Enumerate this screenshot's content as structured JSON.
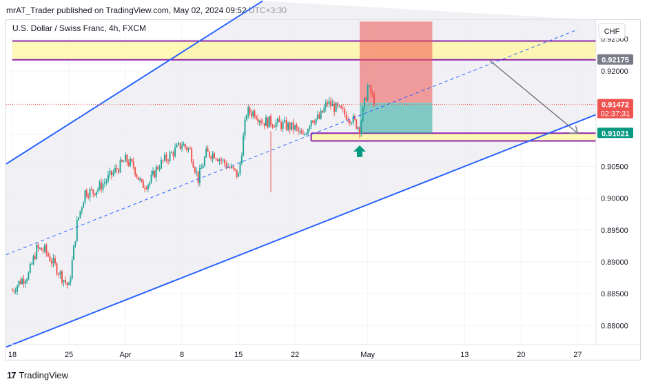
{
  "header": {
    "publisher": "mrAT_Trader published on TradingView.com, May 02, 2024 09:52 UTC+3:30"
  },
  "chart_header": {
    "symbol": "U.S. Dollar / Swiss Franc, 4h, FXCM"
  },
  "currency": "CHF",
  "footer": {
    "brand": "TradingView",
    "logo_mark": "17"
  },
  "colors": {
    "up": "#26a69a",
    "down": "#ef5350",
    "channel": "#2962ff",
    "zone_fill": "#fff59d",
    "zone_border": "#8e24aa",
    "target": "#26a69a",
    "stop": "#ef5350",
    "arrow": "#787b86"
  },
  "badges": {
    "resistance": "0.92175",
    "current_price": "0.91472",
    "countdown": "02:37:31",
    "support": "0.91021"
  },
  "chart_data": {
    "type": "candlestick",
    "title": "U.S. Dollar / Swiss Franc, 4h, FXCM",
    "instrument": "USDCHF",
    "timeframe": "4h",
    "yaxis": {
      "ticks": [
        "0.92500",
        "0.92000",
        "0.91500",
        "0.91000",
        "0.90500",
        "0.90000",
        "0.89500",
        "0.89000",
        "0.88500",
        "0.88000"
      ],
      "range": [
        0.877,
        0.928
      ]
    },
    "xaxis": {
      "ticks": [
        "18",
        "25",
        "Apr",
        "8",
        "15",
        "22",
        "May",
        "13",
        "20",
        "27"
      ]
    },
    "close_path": [
      {
        "d": "2024-03-18",
        "c": 0.8855
      },
      {
        "d": "2024-03-19",
        "c": 0.887
      },
      {
        "d": "2024-03-20",
        "c": 0.888
      },
      {
        "d": "2024-03-21",
        "c": 0.892
      },
      {
        "d": "2024-03-22",
        "c": 0.8918
      },
      {
        "d": "2024-03-25",
        "c": 0.886
      },
      {
        "d": "2024-03-26",
        "c": 0.896
      },
      {
        "d": "2024-03-27",
        "c": 0.901
      },
      {
        "d": "2024-03-28",
        "c": 0.901
      },
      {
        "d": "2024-03-29",
        "c": 0.902
      },
      {
        "d": "2024-04-01",
        "c": 0.906
      },
      {
        "d": "2024-04-02",
        "c": 0.905
      },
      {
        "d": "2024-04-03",
        "c": 0.902
      },
      {
        "d": "2024-04-04",
        "c": 0.9025
      },
      {
        "d": "2024-04-05",
        "c": 0.905
      },
      {
        "d": "2024-04-08",
        "c": 0.9085
      },
      {
        "d": "2024-04-09",
        "c": 0.9075
      },
      {
        "d": "2024-04-10",
        "c": 0.903
      },
      {
        "d": "2024-04-11",
        "c": 0.907
      },
      {
        "d": "2024-04-12",
        "c": 0.907
      },
      {
        "d": "2024-04-15",
        "c": 0.9035
      },
      {
        "d": "2024-04-16",
        "c": 0.9135
      },
      {
        "d": "2024-04-17",
        "c": 0.9135
      },
      {
        "d": "2024-04-18",
        "c": 0.912
      },
      {
        "d": "2024-04-19",
        "c": 0.912
      },
      {
        "d": "2024-04-22",
        "c": 0.911
      },
      {
        "d": "2024-04-23",
        "c": 0.9095
      },
      {
        "d": "2024-04-24",
        "c": 0.9125
      },
      {
        "d": "2024-04-25",
        "c": 0.9125
      },
      {
        "d": "2024-04-26",
        "c": 0.915
      },
      {
        "d": "2024-04-29",
        "c": 0.9125
      },
      {
        "d": "2024-04-30",
        "c": 0.911
      },
      {
        "d": "2024-05-01",
        "c": 0.9175
      },
      {
        "d": "2024-05-02",
        "c": 0.9147
      }
    ],
    "channel": {
      "upper": [
        {
          "d": "2024-03-18",
          "p": 0.906
        },
        {
          "d": "2024-04-18",
          "p": 0.931
        }
      ],
      "lower": [
        {
          "d": "2024-03-18",
          "p": 0.877
        },
        {
          "d": "2024-05-28",
          "p": 0.9125
        }
      ],
      "mid": [
        {
          "d": "2024-03-18",
          "p": 0.8915
        },
        {
          "d": "2024-05-27",
          "p": 0.9265
        }
      ]
    },
    "zones": [
      {
        "name": "resistance",
        "from": 0.9247,
        "to": 0.92175,
        "start": "2024-03-18"
      },
      {
        "name": "support",
        "from": 0.91021,
        "to": 0.909,
        "start": "2024-04-24"
      }
    ],
    "position": {
      "entry": 0.915,
      "stop": 0.92775,
      "target": 0.91021,
      "start": "2024-04-30",
      "end": "2024-05-09"
    },
    "projection": {
      "from": {
        "d": "2024-05-16",
        "p": 0.92175
      },
      "to": {
        "d": "2024-05-27",
        "p": 0.91021
      }
    },
    "signal": {
      "type": "arrow-up",
      "d": "2024-04-30",
      "p": 0.9083
    },
    "current_price": 0.91472
  }
}
